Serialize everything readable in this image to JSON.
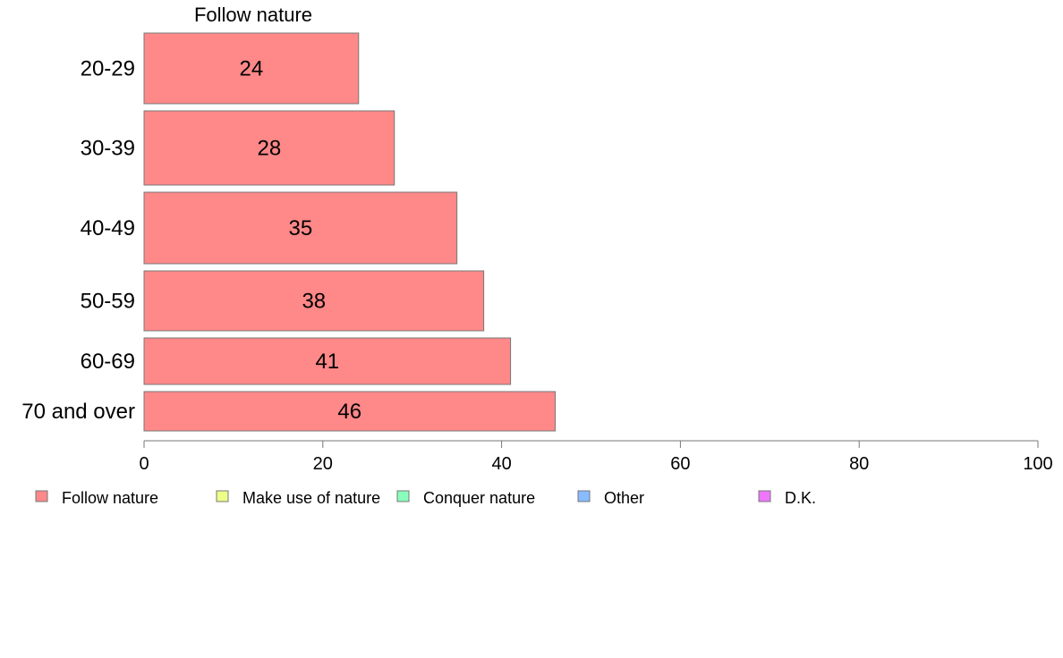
{
  "chart_data": {
    "type": "bar",
    "orientation": "horizontal",
    "title": "",
    "series_title": "Follow nature",
    "categories": [
      "20-29",
      "30-39",
      "40-49",
      "50-59",
      "60-69",
      "70 and over"
    ],
    "series": [
      {
        "name": "Follow nature",
        "values": [
          24,
          28,
          35,
          38,
          41,
          46
        ],
        "color": "#ff8888"
      }
    ],
    "data_labels": [
      "24",
      "28",
      "35",
      "38",
      "41",
      "46"
    ],
    "xlim": [
      0,
      100
    ],
    "x_ticks": [
      0,
      20,
      40,
      60,
      80,
      100
    ],
    "x_tick_labels": [
      "0",
      "20",
      "40",
      "60",
      "80",
      "100"
    ],
    "xlabel": "",
    "ylabel": "",
    "grid": false,
    "legend_position": "bottom",
    "legend": [
      {
        "label": "Follow nature",
        "color": "#ff8888"
      },
      {
        "label": "Make use of nature",
        "color": "#eeff88"
      },
      {
        "label": "Conquer nature",
        "color": "#88ffbb"
      },
      {
        "label": "Other",
        "color": "#88bbff"
      },
      {
        "label": "D.K.",
        "color": "#ee77ff"
      }
    ]
  }
}
